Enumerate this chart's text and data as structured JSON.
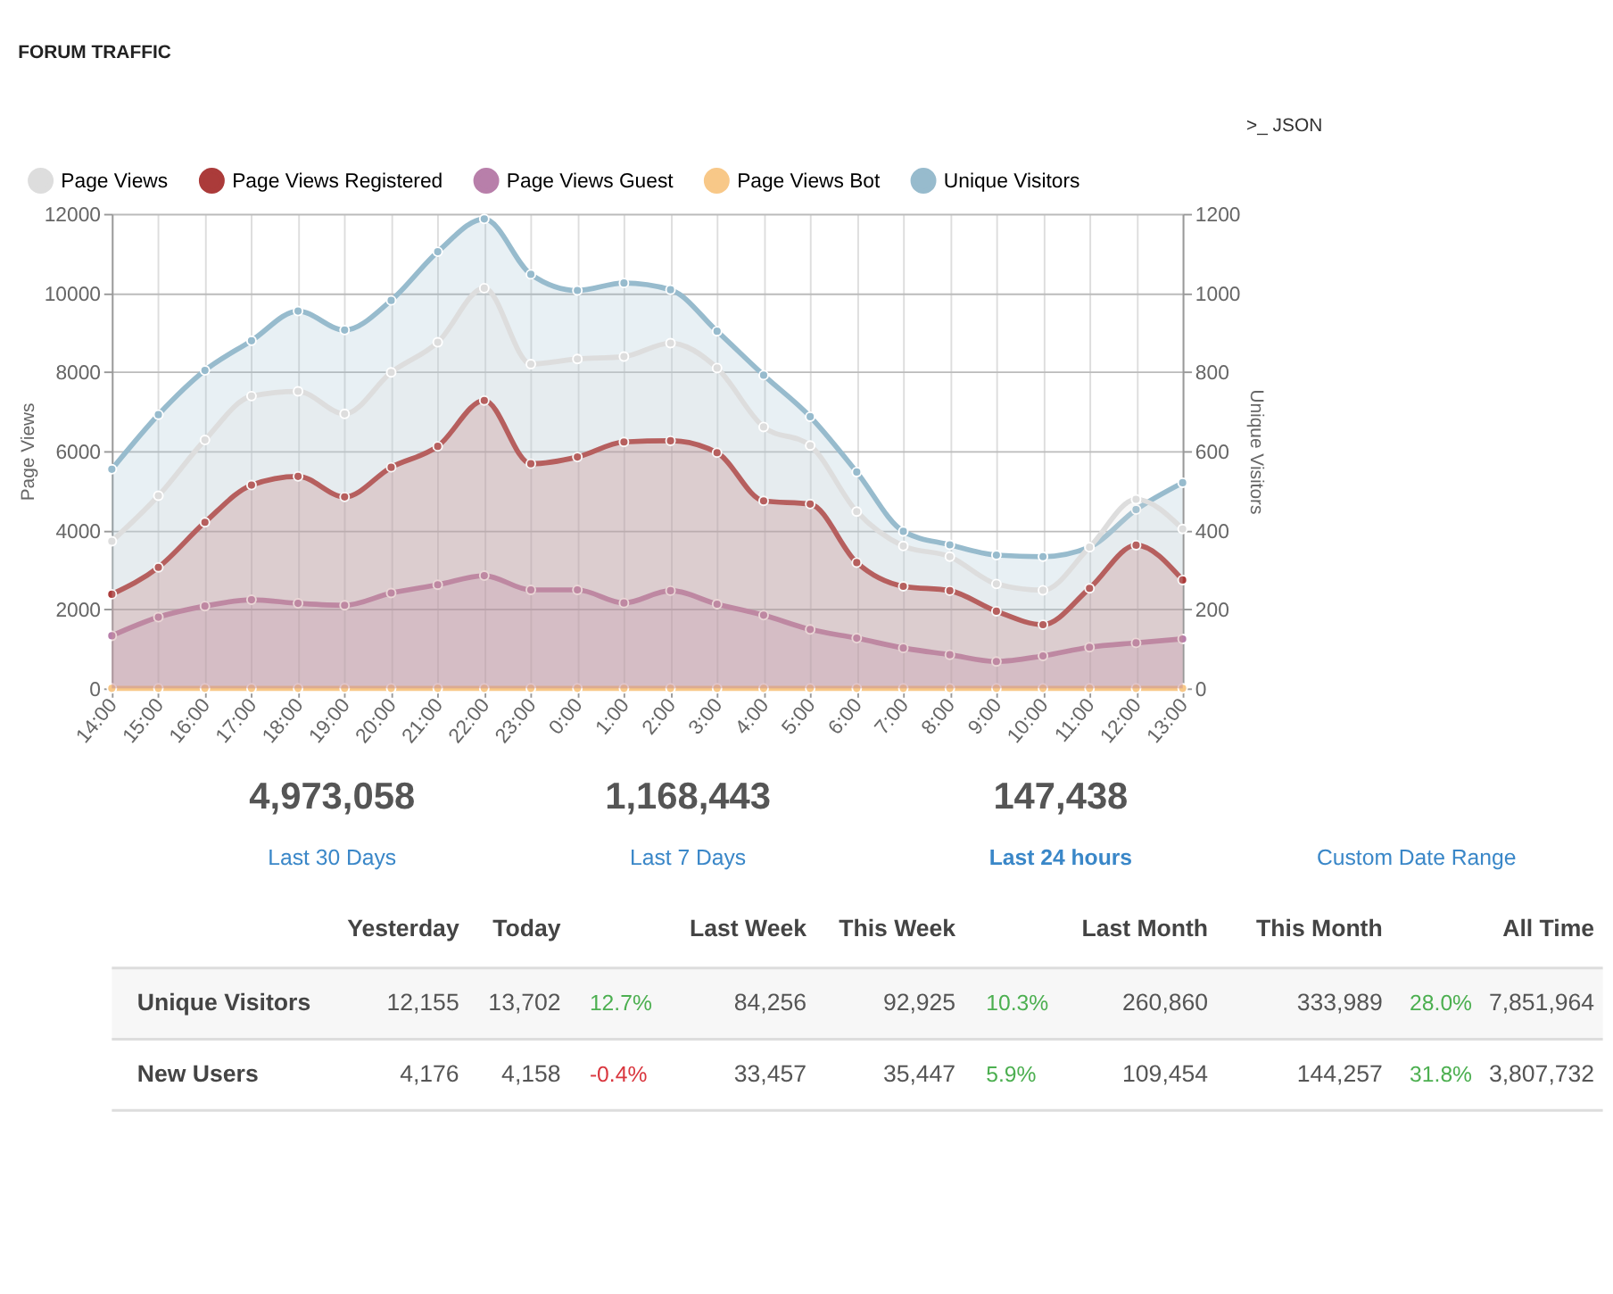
{
  "chart_data": {
    "type": "area",
    "title": "FORUM TRAFFIC",
    "ylabel": "Page Views",
    "y2label": "Unique Visitors",
    "categories": [
      "14:00",
      "15:00",
      "16:00",
      "17:00",
      "18:00",
      "19:00",
      "20:00",
      "21:00",
      "22:00",
      "23:00",
      "0:00",
      "1:00",
      "2:00",
      "3:00",
      "4:00",
      "5:00",
      "6:00",
      "7:00",
      "8:00",
      "9:00",
      "10:00",
      "11:00",
      "12:00",
      "13:00"
    ],
    "series": [
      {
        "name": "Page Views",
        "color": "#dddddd",
        "values": [
          3720,
          4870,
          6280,
          7390,
          7510,
          6940,
          7990,
          8750,
          10120,
          8200,
          8330,
          8390,
          8730,
          8100,
          6610,
          6140,
          4470,
          3600,
          3330,
          2640,
          2480,
          3570,
          4780,
          4030
        ]
      },
      {
        "name": "Page Views Registered",
        "color": "#ab3b3a",
        "values": [
          2380,
          3060,
          4200,
          5140,
          5360,
          4840,
          5590,
          6120,
          7280,
          5680,
          5850,
          6230,
          6260,
          5960,
          4740,
          4660,
          3180,
          2580,
          2470,
          1950,
          1610,
          2530,
          3620,
          2740
        ]
      },
      {
        "name": "Page Views Guest",
        "color": "#b87faa",
        "values": [
          1330,
          1800,
          2080,
          2240,
          2150,
          2100,
          2410,
          2620,
          2850,
          2490,
          2490,
          2160,
          2470,
          2130,
          1850,
          1490,
          1270,
          1020,
          850,
          680,
          820,
          1040,
          1150,
          1250
        ]
      },
      {
        "name": "Page Views Bot",
        "color": "#f8c888",
        "type": "line",
        "values": [
          0,
          0,
          0,
          0,
          0,
          0,
          0,
          0,
          0,
          0,
          0,
          0,
          0,
          0,
          0,
          0,
          0,
          0,
          0,
          0,
          0,
          0,
          0,
          0
        ]
      },
      {
        "name": "Unique Visitors",
        "color": "#97bbcd",
        "axis": "y2",
        "values": [
          554,
          692,
          804,
          879,
          954,
          906,
          981,
          1104,
          1187,
          1047,
          1006,
          1025,
          1008,
          903,
          792,
          687,
          547,
          397,
          363,
          337,
          333,
          357,
          452,
          520
        ]
      }
    ],
    "ylim": [
      0,
      12000
    ],
    "yticks": [
      0,
      2000,
      4000,
      6000,
      8000,
      10000,
      12000
    ],
    "y2lim": [
      0,
      1200
    ],
    "y2ticks": [
      0,
      200,
      400,
      600,
      800,
      1000,
      1200
    ],
    "grid": true,
    "legend": "top",
    "marker": "circle",
    "annotations": [
      ">_ JSON",
      "4,973,058",
      "1,168,443",
      "147,438",
      "Custom Date Range",
      "Last 30 Days",
      "Last 7 Days",
      "Last 24 hours",
      "Yesterday",
      "Today",
      "Last Week",
      "This Week",
      "Last Month",
      "This Month",
      "All Time",
      "Unique Visitors",
      "12,155",
      "13,702",
      "12.7%",
      "84,256",
      "92,925",
      "10.3%",
      "260,860",
      "333,989",
      "28.0%",
      "7,851,964",
      "New Users",
      "4,176",
      "4,158",
      "-0.4%",
      "33,457",
      "35,447",
      "5.9%",
      "109,454",
      "144,257",
      "31.8%",
      "3,807,732"
    ]
  }
}
